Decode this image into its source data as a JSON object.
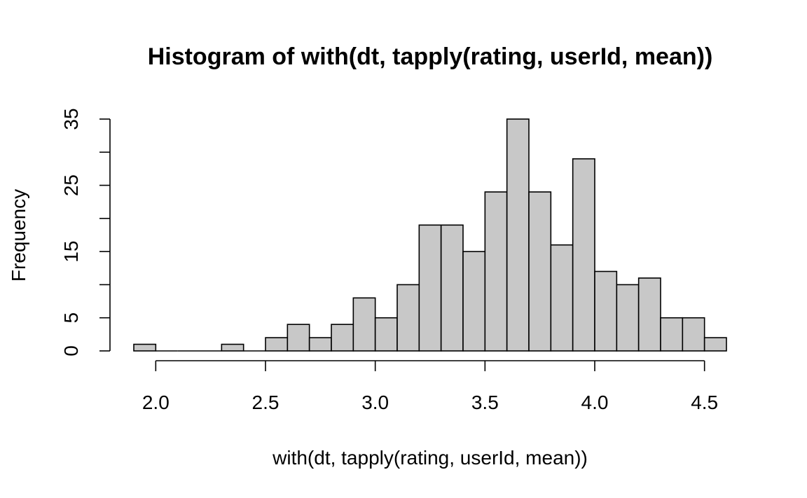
{
  "chart_data": {
    "type": "bar",
    "title": "Histogram of with(dt, tapply(rating, userId, mean))",
    "xlabel": "with(dt, tapply(rating, userId, mean))",
    "ylabel": "Frequency",
    "bin_width": 0.1,
    "bins": [
      {
        "x0": 1.9,
        "x1": 2.0,
        "count": 1
      },
      {
        "x0": 2.0,
        "x1": 2.1,
        "count": 0
      },
      {
        "x0": 2.1,
        "x1": 2.2,
        "count": 0
      },
      {
        "x0": 2.2,
        "x1": 2.3,
        "count": 0
      },
      {
        "x0": 2.3,
        "x1": 2.4,
        "count": 1
      },
      {
        "x0": 2.4,
        "x1": 2.5,
        "count": 0
      },
      {
        "x0": 2.5,
        "x1": 2.6,
        "count": 2
      },
      {
        "x0": 2.6,
        "x1": 2.7,
        "count": 4
      },
      {
        "x0": 2.7,
        "x1": 2.8,
        "count": 2
      },
      {
        "x0": 2.8,
        "x1": 2.9,
        "count": 4
      },
      {
        "x0": 2.9,
        "x1": 3.0,
        "count": 8
      },
      {
        "x0": 3.0,
        "x1": 3.1,
        "count": 5
      },
      {
        "x0": 3.1,
        "x1": 3.2,
        "count": 10
      },
      {
        "x0": 3.2,
        "x1": 3.3,
        "count": 19
      },
      {
        "x0": 3.3,
        "x1": 3.4,
        "count": 19
      },
      {
        "x0": 3.4,
        "x1": 3.5,
        "count": 15
      },
      {
        "x0": 3.5,
        "x1": 3.6,
        "count": 24
      },
      {
        "x0": 3.6,
        "x1": 3.7,
        "count": 35
      },
      {
        "x0": 3.7,
        "x1": 3.8,
        "count": 24
      },
      {
        "x0": 3.8,
        "x1": 3.9,
        "count": 16
      },
      {
        "x0": 3.9,
        "x1": 4.0,
        "count": 29
      },
      {
        "x0": 4.0,
        "x1": 4.1,
        "count": 12
      },
      {
        "x0": 4.1,
        "x1": 4.2,
        "count": 10
      },
      {
        "x0": 4.2,
        "x1": 4.3,
        "count": 11
      },
      {
        "x0": 4.3,
        "x1": 4.4,
        "count": 5
      },
      {
        "x0": 4.4,
        "x1": 4.5,
        "count": 5
      },
      {
        "x0": 4.5,
        "x1": 4.6,
        "count": 2
      }
    ],
    "x_ticks": [
      2.0,
      2.5,
      3.0,
      3.5,
      4.0,
      4.5
    ],
    "x_tick_labels": [
      "2.0",
      "2.5",
      "3.0",
      "3.5",
      "4.0",
      "4.5"
    ],
    "y_ticks": [
      0,
      5,
      10,
      15,
      20,
      25,
      30,
      35
    ],
    "y_tick_labels": [
      "0",
      "5",
      "",
      "15",
      "",
      "25",
      "",
      "35"
    ],
    "xlim": [
      1.9,
      4.6
    ],
    "ylim": [
      0,
      35
    ],
    "bar_fill": "#c8c8c8",
    "bar_stroke": "#000000",
    "grid": false,
    "legend": "none"
  }
}
